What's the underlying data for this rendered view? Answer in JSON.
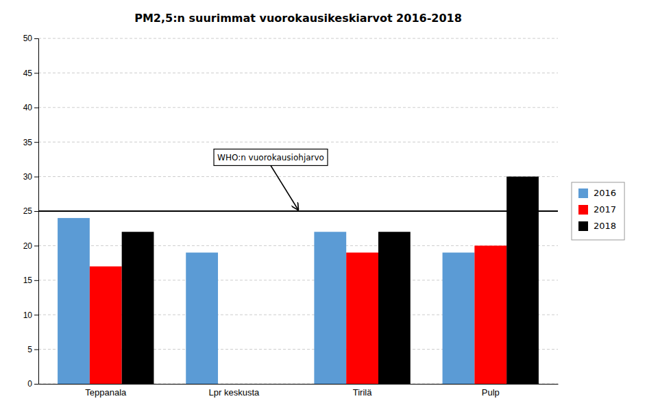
{
  "chart_data": {
    "type": "bar",
    "title": "PM2,5:n suurimmat vuorokausikeskiarvot  2016-2018",
    "categories": [
      "Teppanala",
      "Lpr keskusta",
      "Tirilä",
      "Pulp"
    ],
    "series": [
      {
        "name": "2016",
        "color": "#5B9BD5",
        "values": [
          24,
          19,
          22,
          19
        ]
      },
      {
        "name": "2017",
        "color": "#FF0000",
        "values": [
          17,
          0,
          19,
          20
        ]
      },
      {
        "name": "2018",
        "color": "#000000",
        "values": [
          22,
          0,
          22,
          30
        ]
      }
    ],
    "ylim": [
      0,
      50
    ],
    "yticks": [
      0,
      5,
      10,
      15,
      20,
      25,
      30,
      35,
      40,
      45,
      50
    ],
    "grid": true,
    "legend": "right",
    "annotations": [
      {
        "text": "WHO:n vuorokausiohjarvo",
        "y": 25
      }
    ]
  }
}
